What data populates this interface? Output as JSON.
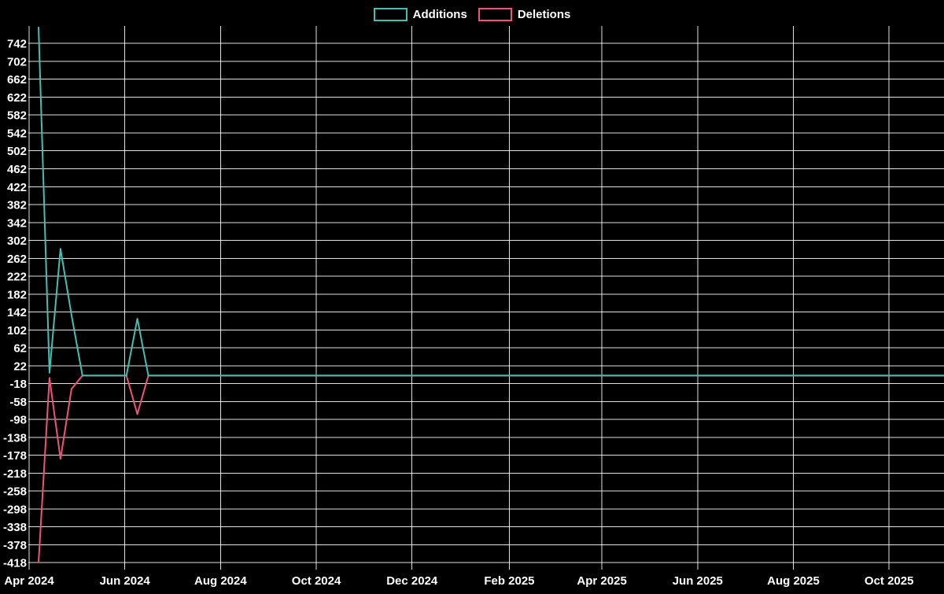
{
  "legend": {
    "items": [
      {
        "label": "Additions"
      },
      {
        "label": "Deletions"
      }
    ]
  },
  "colors": {
    "background": "#000000",
    "grid": "#ffffff",
    "text": "#ffffff",
    "additions": "#46beb2",
    "deletions": "#f0537a"
  },
  "chart_data": {
    "type": "line",
    "title": "",
    "xlabel": "",
    "ylabel": "",
    "grid": true,
    "legend_position": "top-center",
    "xlim": [
      "2024-04-01",
      "2025-11-05"
    ],
    "ylim": [
      -430,
      781
    ],
    "yticks": [
      742,
      702,
      662,
      622,
      582,
      542,
      502,
      462,
      422,
      382,
      342,
      302,
      262,
      222,
      182,
      142,
      102,
      62,
      22,
      -18,
      -58,
      -98,
      -138,
      -178,
      -218,
      -258,
      -298,
      -338,
      -378,
      -418
    ],
    "xticks": [
      {
        "label": "Apr 2024",
        "date": "2024-04-01"
      },
      {
        "label": "Jun 2024",
        "date": "2024-06-01"
      },
      {
        "label": "Aug 2024",
        "date": "2024-08-01"
      },
      {
        "label": "Oct 2024",
        "date": "2024-10-01"
      },
      {
        "label": "Dec 2024",
        "date": "2024-12-01"
      },
      {
        "label": "Feb 2025",
        "date": "2025-02-01"
      },
      {
        "label": "Apr 2025",
        "date": "2025-04-01"
      },
      {
        "label": "Jun 2025",
        "date": "2025-06-01"
      },
      {
        "label": "Aug 2025",
        "date": "2025-08-01"
      },
      {
        "label": "Oct 2025",
        "date": "2025-10-01"
      }
    ],
    "x": [
      "2024-04-07",
      "2024-04-14",
      "2024-04-21",
      "2024-04-28",
      "2024-05-05",
      "2024-06-02",
      "2024-06-09",
      "2024-06-16",
      "2025-11-05"
    ],
    "series": [
      {
        "name": "Additions",
        "color": "#46beb2",
        "values": [
          779,
          6,
          283,
          135,
          0,
          0,
          127,
          0,
          0
        ]
      },
      {
        "name": "Deletions",
        "color": "#f0537a",
        "values": [
          -418,
          -5,
          -186,
          -30,
          0,
          0,
          -86,
          0,
          0
        ]
      }
    ]
  }
}
